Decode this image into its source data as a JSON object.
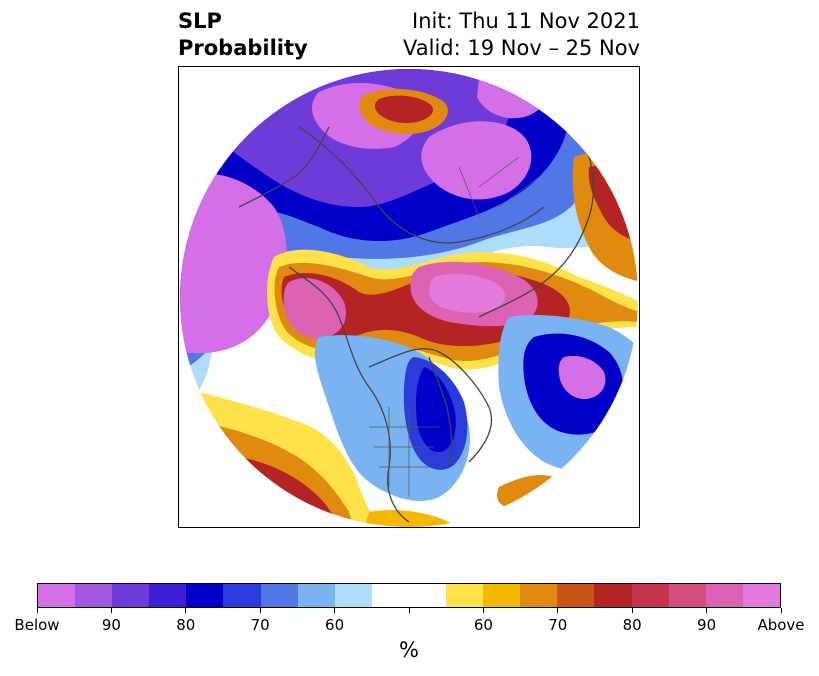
{
  "title": {
    "line1": "SLP",
    "line2": "Probability",
    "init": "Init: Thu 11 Nov 2021",
    "valid": "Valid: 19 Nov – 25 Nov"
  },
  "colorbar": {
    "colors": [
      "#d46fe8",
      "#a257e0",
      "#6e3bd9",
      "#3f1fd6",
      "#0000c8",
      "#2a3ddc",
      "#5077e5",
      "#79b3f2",
      "#addcfc",
      "#ffffff",
      "#ffffff",
      "#ffe14a",
      "#f4b800",
      "#e08b10",
      "#c95518",
      "#b42424",
      "#c5334d",
      "#d24e7f",
      "#dc63b3",
      "#e47ad9"
    ],
    "tick_labels": [
      "Below",
      "90",
      "80",
      "70",
      "60",
      "",
      "60",
      "70",
      "80",
      "90",
      "Above"
    ],
    "units": "%"
  },
  "legend_colors": {
    "below_extreme": "#d46fe8",
    "below_strong": "#0000c8",
    "above_strong": "#b42424",
    "above_extreme": "#e47ad9"
  }
}
